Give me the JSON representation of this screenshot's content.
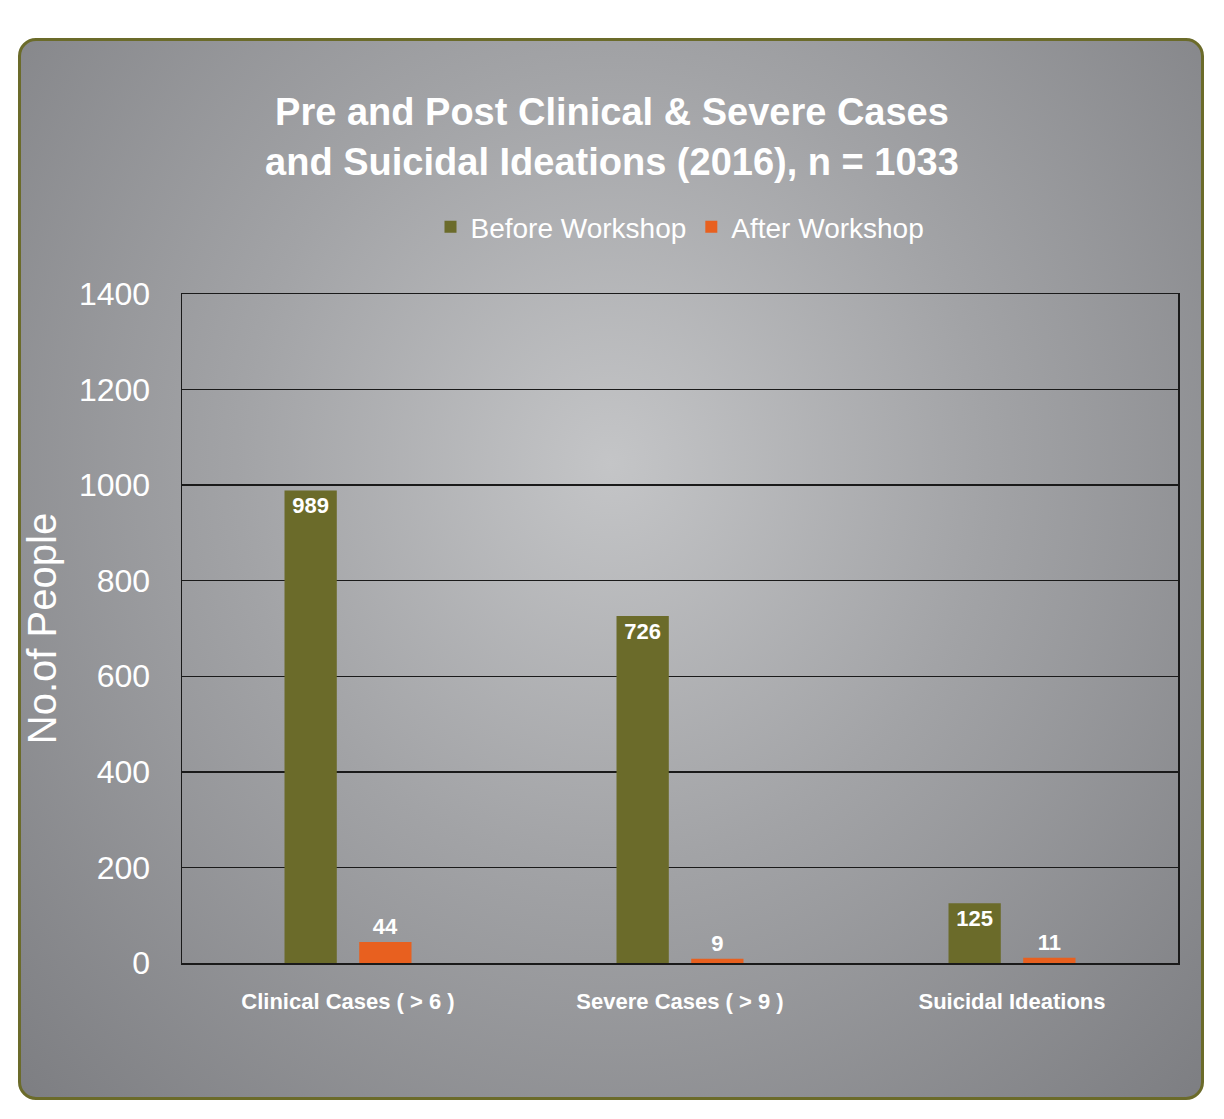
{
  "chart_data": {
    "type": "bar",
    "title": [
      "Pre and Post Clinical & Severe Cases",
      "and Suicidal Ideations (2016), n = 1033"
    ],
    "y_label": "No.of People",
    "categories": [
      "Clinical Cases ( > 6 )",
      "Severe Cases ( > 9 )",
      "Suicidal Ideations"
    ],
    "series": [
      {
        "name": "Before Workshop",
        "color": "#6b6b2a",
        "values": [
          989,
          726,
          125
        ]
      },
      {
        "name": "After Workshop",
        "color": "#e8601f",
        "values": [
          44,
          9,
          11
        ]
      }
    ],
    "ylim": [
      0,
      1400
    ],
    "yticks": [
      0,
      200,
      400,
      600,
      800,
      1000,
      1200,
      1400
    ],
    "grid": true,
    "legend": "top",
    "data_labels": true
  }
}
